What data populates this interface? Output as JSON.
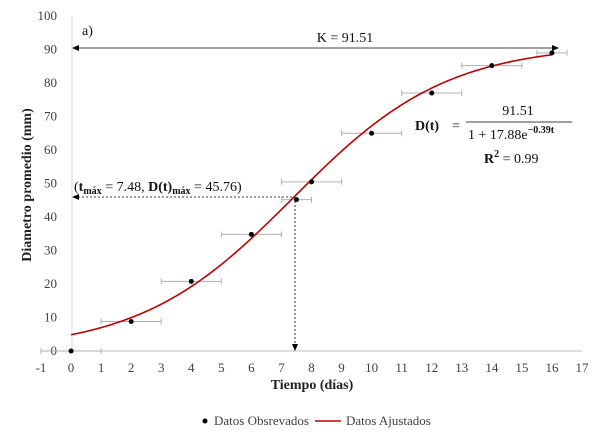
{
  "chart_data": {
    "type": "scatter",
    "panel_label": "a)",
    "xlabel": "Tiempo (días)",
    "ylabel": "Diametro promedio (mm)",
    "xlim": [
      -1,
      17
    ],
    "ylim": [
      0,
      100
    ],
    "xticks": [
      "-1",
      "0",
      "1",
      "2",
      "3",
      "4",
      "5",
      "6",
      "7",
      "8",
      "9",
      "10",
      "11",
      "12",
      "13",
      "14",
      "15",
      "16",
      "17"
    ],
    "yticks": [
      "0",
      "10",
      "20",
      "30",
      "40",
      "50",
      "60",
      "70",
      "80",
      "90",
      "100"
    ],
    "series": [
      {
        "name": "Datos Obsrevados",
        "kind": "points",
        "color": "#000000",
        "x": [
          0,
          2,
          4,
          6,
          7.5,
          8,
          10,
          12,
          14,
          16
        ],
        "y": [
          0,
          8.8,
          20.8,
          34.8,
          45.2,
          50.5,
          65,
          77,
          85.2,
          89
        ],
        "x_error_low": [
          1,
          1,
          1,
          1,
          0.5,
          1,
          1,
          1,
          1,
          0.5
        ],
        "x_error_high": [
          1,
          1,
          1,
          1,
          0.5,
          1,
          1,
          1,
          1,
          0.5
        ]
      },
      {
        "name": "Datos Ajustados",
        "kind": "curve",
        "color": "#c00000",
        "model": "logistic",
        "K": 91.51,
        "a": 17.88,
        "r": 0.39,
        "x_range": [
          0,
          16
        ]
      }
    ],
    "annotations": {
      "k_line": {
        "label": "K = 91.51",
        "value": 91.51
      },
      "tmax": {
        "x": 7.48,
        "y": 45.76,
        "label_open": "(",
        "t_sym": "t",
        "t_sub": "máx",
        "t_val": " = 7.48, ",
        "d_sym": "D(t)",
        "d_sub": "máx",
        "d_val": " = 45.76)"
      },
      "equation": {
        "lhs": "D(t)",
        "equals": "=",
        "numerator": "91.51",
        "denominator": "1 + 17.88e",
        "exponent": "−0.39t",
        "r2_sym": "R",
        "r2_sup": "2",
        "r2_val": " = 0.99"
      }
    },
    "legend_position": "bottom-center",
    "grid": false
  }
}
